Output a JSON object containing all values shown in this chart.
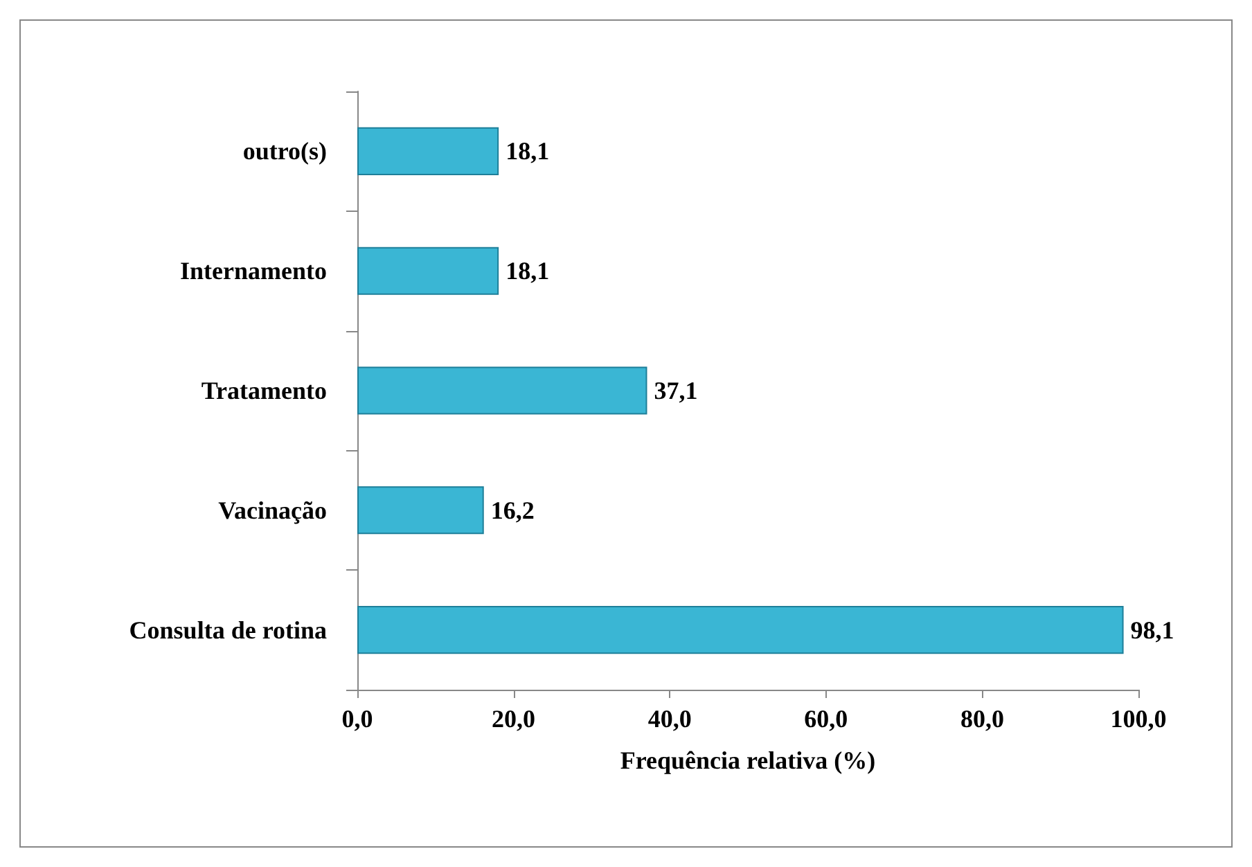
{
  "chart_data": {
    "type": "bar",
    "orientation": "horizontal",
    "xlabel": "Frequência relativa (%)",
    "categories": [
      "outro(s)",
      "Internamento",
      "Tratamento",
      "Vacinação",
      "Consulta de rotina"
    ],
    "values": [
      18.1,
      18.1,
      37.1,
      16.2,
      98.1
    ],
    "value_labels": [
      "18,1",
      "18,1",
      "37,1",
      "16,2",
      "98,1"
    ],
    "color": "#3ab6d4",
    "xlim": [
      0,
      100
    ],
    "xticks": [
      {
        "value": 0,
        "label": "0,0"
      },
      {
        "value": 20,
        "label": "20,0"
      },
      {
        "value": 40,
        "label": "40,0"
      },
      {
        "value": 60,
        "label": "60,0"
      },
      {
        "value": 80,
        "label": "80,0"
      },
      {
        "value": 100,
        "label": "100,0"
      }
    ],
    "grid": false
  }
}
